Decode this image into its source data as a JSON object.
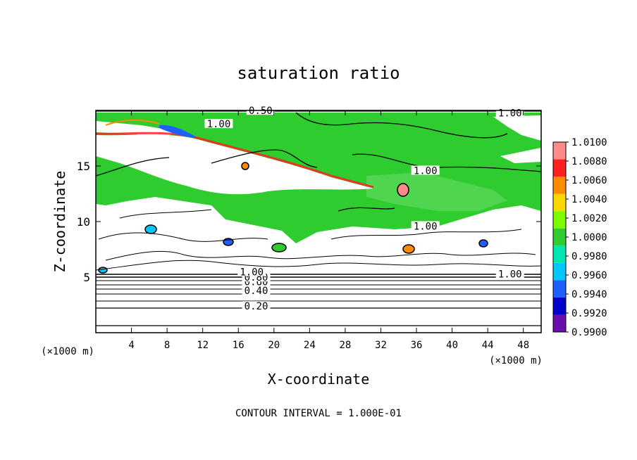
{
  "chart_data": {
    "type": "heatmap",
    "title": "saturation ratio",
    "xlabel": "X-coordinate",
    "ylabel": "Z-coordinate",
    "x_unit_left": "(×1000 m)",
    "x_unit_right": "(×1000 m)",
    "xlim": [
      0,
      50
    ],
    "ylim": [
      0,
      20
    ],
    "x_ticks": [
      4,
      8,
      12,
      16,
      20,
      24,
      28,
      32,
      36,
      40,
      44,
      48
    ],
    "y_ticks": [
      5,
      10,
      15
    ],
    "footer": "CONTOUR INTERVAL = 1.000E-01",
    "colorbar": {
      "levels": [
        0.99,
        0.992,
        0.994,
        0.996,
        0.998,
        1.0,
        1.002,
        1.004,
        1.006,
        1.008,
        1.01
      ],
      "labels": [
        "0.9900",
        "0.9920",
        "0.9940",
        "0.9960",
        "0.9980",
        "1.0000",
        "1.0020",
        "1.0040",
        "1.0060",
        "1.0080",
        "1.0100"
      ],
      "colors": [
        "#6a0dad",
        "#0000cc",
        "#1f5fff",
        "#00c8ff",
        "#00e6b0",
        "#2ecc2e",
        "#7cfc00",
        "#ffd700",
        "#ff8c00",
        "#ff2020",
        "#ff8a8a"
      ]
    },
    "contour_labels": [
      {
        "text": "0.20",
        "x": 18,
        "z": 2.2
      },
      {
        "text": "0.40",
        "x": 18,
        "z": 3.6
      },
      {
        "text": "0.60",
        "x": 18,
        "z": 4.4
      },
      {
        "text": "0.80",
        "x": 18,
        "z": 4.8
      },
      {
        "text": "1.00",
        "x": 17.5,
        "z": 5.3
      },
      {
        "text": "1.00",
        "x": 46.5,
        "z": 5.1
      },
      {
        "text": "1.00",
        "x": 37,
        "z": 9.4
      },
      {
        "text": "1.00",
        "x": 37,
        "z": 14.4
      },
      {
        "text": "1.00",
        "x": 13.8,
        "z": 18.6
      },
      {
        "text": "0.50",
        "x": 18.5,
        "z": 19.8
      },
      {
        "text": "1.00",
        "x": 46.5,
        "z": 19.6
      }
    ],
    "regions": {
      "green_cloud_layer": {
        "z_range": [
          9,
          20
        ],
        "value": 1.0
      },
      "subsaturated_band": {
        "z_range": [
          11,
          18
        ],
        "value": "< 0.99"
      },
      "subsaturated_lower": {
        "z_range": [
          0,
          9
        ],
        "value": "< 0.99"
      }
    }
  }
}
